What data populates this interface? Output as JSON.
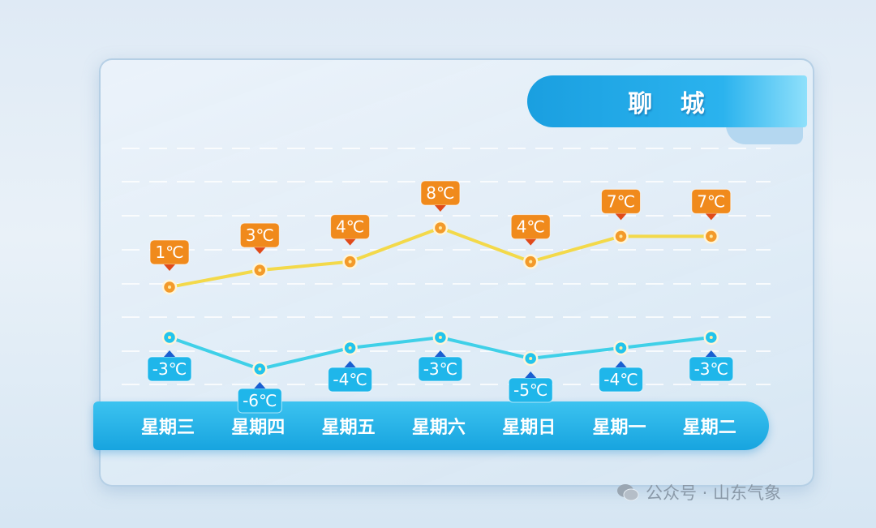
{
  "title": "聊 城",
  "chart_data": {
    "type": "line",
    "categories": [
      "星期三",
      "星期四",
      "星期五",
      "星期六",
      "星期日",
      "星期一",
      "星期二"
    ],
    "series": [
      {
        "key": "high",
        "values": [
          1,
          3,
          4,
          8,
          4,
          7,
          7
        ],
        "labels": [
          "1℃",
          "3℃",
          "4℃",
          "8℃",
          "4℃",
          "7℃",
          "7℃"
        ],
        "line_color": "#f3d94a",
        "label_color": "#f08a1c"
      },
      {
        "key": "low",
        "values": [
          -3,
          -6,
          -4,
          -3,
          -5,
          -4,
          -3
        ],
        "labels": [
          "-3℃",
          "-6℃",
          "-4℃",
          "-3℃",
          "-5℃",
          "-4℃",
          "-3℃"
        ],
        "line_color": "#3fd0e8",
        "label_color": "#1fb6ea"
      }
    ],
    "grid": true
  },
  "watermark": {
    "icon": "wechat-icon",
    "text": "公众号 · 山东气象"
  }
}
